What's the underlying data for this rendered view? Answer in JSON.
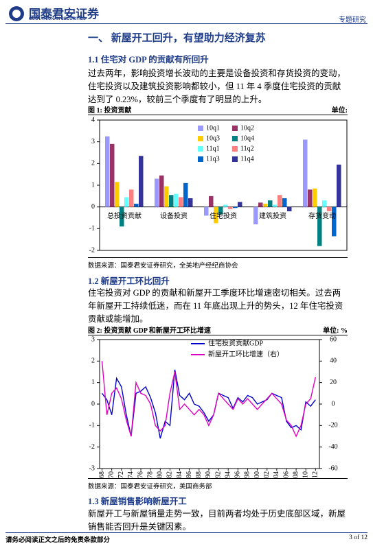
{
  "header": {
    "logo": "国泰君安证券",
    "logo_en": "GUOTAI JUNAN SECURITIES",
    "tag": "专题研究"
  },
  "section": {
    "title": "一、  新屋开工回升，有望助力经济复苏"
  },
  "s1": {
    "title": "1.1 住宅对 GDP 的贡献有所回升",
    "text": "过去两年，影响投资增长波动的主要是设备投资和存货投资的变动，住宅投资以及建筑投资影响都较小，但 11 年 4 季度住宅投资的贡献达到了 0.23%，较前三个季度有了明显的上升。",
    "fig": "图 1:    投资贡献",
    "unit": "单位:",
    "source": "数据来源：国泰君安证券研究，全美地产经纪商协会"
  },
  "s2": {
    "title": "1.2 新屋开工环比回升",
    "text": "住宅投资对 GDP 的贡献和新屋开工季度环比增速密切相关。过去两年新屋开工持续低迷，而在 11 年底出现上升的势头，12 年住宅投资贡献或能增加。",
    "fig": "图 2:    投资贡献 GDP 和新屋开工环比增速",
    "unit": "单位:  %",
    "source": "数据来源：国泰君安证券研究，美国商务部"
  },
  "s3": {
    "title": "1.3 新屋销售影响新屋开工",
    "text": "新屋开工与新屋销量走势一致，目前两者均处于历史底部区域，新屋销售能否回升是关键因素。"
  },
  "footer": {
    "note": "请务必阅读正文之后的免责条款部分",
    "page": "3 of 12"
  },
  "chart_data": [
    {
      "type": "bar",
      "categories": [
        "总投资贡献",
        "设备投资",
        "住宅投资",
        "建筑投资",
        "存货变动"
      ],
      "series": [
        {
          "name": "10q1",
          "color": "#9999ff",
          "values": [
            3.25,
            1.3,
            -0.4,
            -0.8,
            3.1
          ]
        },
        {
          "name": "10q2",
          "color": "#993366",
          "values": [
            2.9,
            1.45,
            0.5,
            0.2,
            0.8
          ]
        },
        {
          "name": "10q3",
          "color": "#ffcc00",
          "values": [
            1.15,
            0.95,
            -0.75,
            0.15,
            0.85
          ]
        },
        {
          "name": "10q4",
          "color": "#008080",
          "values": [
            -0.9,
            0.55,
            -0.35,
            0.3,
            -1.8
          ]
        },
        {
          "name": "11q1",
          "color": "#66ffff",
          "values": [
            0.45,
            0.6,
            0.1,
            0.1,
            0.3
          ]
        },
        {
          "name": "11q2",
          "color": "#ff8080",
          "values": [
            0.8,
            0.45,
            -0.1,
            0.55,
            -0.2
          ]
        },
        {
          "name": "11q3",
          "color": "#0066cc",
          "values": [
            0.15,
            1.1,
            -0.05,
            0.4,
            -1.35
          ]
        },
        {
          "name": "11q4",
          "color": "#333399",
          "values": [
            2.35,
            0.4,
            0.23,
            -0.2,
            1.95
          ]
        }
      ],
      "ylim": [
        -2,
        4
      ],
      "yticks": [
        -2,
        -1,
        0,
        1,
        2,
        3,
        4
      ],
      "legend_position": "top"
    },
    {
      "type": "line",
      "x": [
        1968,
        1969,
        1970,
        1971,
        1972,
        1973,
        1974,
        1975,
        1976,
        1977,
        1978,
        1979,
        1980,
        1981,
        1982,
        1983,
        1984,
        1985,
        1986,
        1987,
        1988,
        1989,
        1990,
        1991,
        1992,
        1993,
        1994,
        1995,
        1996,
        1997,
        1998,
        1999,
        2000,
        2001,
        2002,
        2003,
        2004,
        2005,
        2006,
        2007,
        2008,
        2009,
        2010,
        2011,
        2012
      ],
      "series": [
        {
          "name": "住宅投资贡献GDP",
          "color": "#0000cc",
          "values": [
            0.5,
            0.2,
            -0.5,
            1.2,
            0.8,
            -0.5,
            -1.5,
            0.5,
            0.6,
            0.8,
            0.3,
            -0.4,
            -1.6,
            -0.8,
            -1.0,
            1.6,
            0.4,
            0.2,
            0.5,
            0.0,
            -0.1,
            -0.4,
            -0.8,
            -0.5,
            0.5,
            0.4,
            0.3,
            -0.2,
            0.3,
            0.1,
            0.4,
            0.3,
            0.0,
            0.1,
            0.2,
            0.5,
            0.4,
            0.3,
            -0.8,
            -1.1,
            -1.0,
            -1.2,
            0.1,
            -0.1,
            0.2
          ]
        },
        {
          "name": "新屋开工环比增速（右）",
          "color": "#e000c0",
          "axis": "y2",
          "values": [
            40,
            -10,
            10,
            15,
            5,
            -15,
            -30,
            20,
            10,
            8,
            0,
            -20,
            -25,
            -20,
            10,
            30,
            -5,
            0,
            -5,
            -10,
            -5,
            -10,
            -20,
            -10,
            10,
            5,
            0,
            -5,
            5,
            0,
            5,
            0,
            -5,
            0,
            5,
            10,
            5,
            0,
            -15,
            -20,
            -30,
            -20,
            0,
            5,
            25
          ]
        }
      ],
      "xlim": [
        1967.5,
        2012.8
      ],
      "xticks": [
        {
          "value": 1968,
          "label": "68"
        },
        {
          "value": 1970,
          "label": "70"
        },
        {
          "value": 1972,
          "label": "72"
        },
        {
          "value": 1974,
          "label": "74"
        },
        {
          "value": 1976,
          "label": "76"
        },
        {
          "value": 1978,
          "label": "78"
        },
        {
          "value": 1980,
          "label": "80"
        },
        {
          "value": 1982,
          "label": "82"
        },
        {
          "value": 1984,
          "label": "84"
        },
        {
          "value": 1986,
          "label": "86"
        },
        {
          "value": 1988,
          "label": "88"
        },
        {
          "value": 1990,
          "label": "90"
        },
        {
          "value": 1992,
          "label": "92"
        },
        {
          "value": 1994,
          "label": "94"
        },
        {
          "value": 1996,
          "label": "96"
        },
        {
          "value": 1998,
          "label": "98"
        },
        {
          "value": 2000,
          "label": "00"
        },
        {
          "value": 2002,
          "label": "02"
        },
        {
          "value": 2004,
          "label": "04"
        },
        {
          "value": 2006,
          "label": "06"
        },
        {
          "value": 2008,
          "label": "08"
        },
        {
          "value": 2010,
          "label": "10"
        },
        {
          "value": 2012,
          "label": "12"
        }
      ],
      "ylim": [
        -3,
        3
      ],
      "yticks": [
        -3,
        -2,
        -1,
        0,
        1,
        2,
        3
      ],
      "y2lim": [
        -60,
        60
      ],
      "y2ticks": [
        -60,
        -40,
        -20,
        0,
        20,
        40,
        60
      ],
      "legend_position": "top"
    }
  ]
}
